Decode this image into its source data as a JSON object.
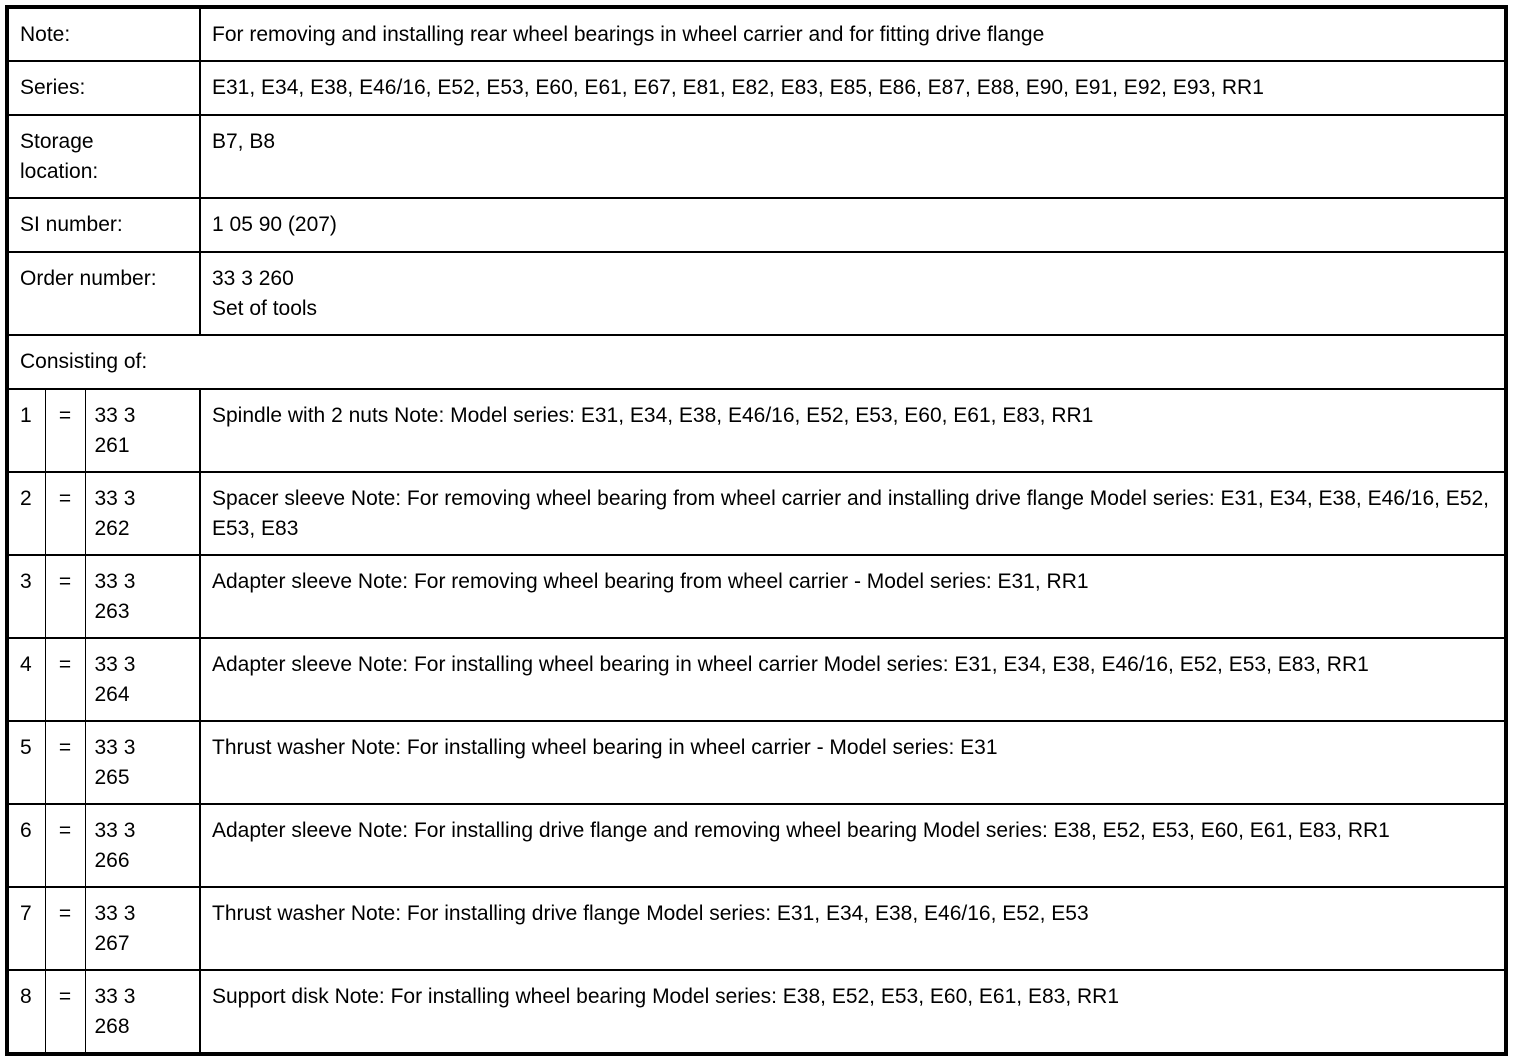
{
  "header_rows": [
    {
      "label": "Note:",
      "value": [
        "For removing and installing rear wheel bearings in wheel carrier and for fitting drive flange"
      ]
    },
    {
      "label": "Series:",
      "value": [
        "E31, E34, E38, E46/16, E52, E53, E60, E61, E67, E81, E82, E83, E85, E86, E87, E88, E90, E91, E92, E93, RR1"
      ]
    },
    {
      "label": "Storage location:",
      "value": [
        "B7, B8"
      ]
    },
    {
      "label": "SI number:",
      "value": [
        "1 05 90 (207)"
      ]
    },
    {
      "label": "Order number:",
      "value": [
        "33 3 260",
        "Set of tools"
      ]
    }
  ],
  "consisting_of_label": "Consisting of:",
  "items": [
    {
      "index": "1",
      "eq": "=",
      "part": [
        "33 3",
        "261"
      ],
      "description": "Spindle with 2 nuts Note: Model series: E31, E34, E38, E46/16, E52, E53, E60, E61, E83, RR1"
    },
    {
      "index": "2",
      "eq": "=",
      "part": [
        "33 3",
        "262"
      ],
      "description": "Spacer sleeve Note: For removing wheel bearing from wheel carrier and installing drive flange Model series: E31, E34, E38, E46/16, E52, E53, E83"
    },
    {
      "index": "3",
      "eq": "=",
      "part": [
        "33 3",
        "263"
      ],
      "description": "Adapter sleeve Note: For removing wheel bearing from wheel carrier - Model series: E31, RR1"
    },
    {
      "index": "4",
      "eq": "=",
      "part": [
        "33 3",
        "264"
      ],
      "description": "Adapter sleeve Note: For installing wheel bearing in wheel carrier Model series: E31, E34, E38, E46/16, E52, E53, E83, RR1"
    },
    {
      "index": "5",
      "eq": "=",
      "part": [
        "33 3",
        "265"
      ],
      "description": "Thrust washer Note: For installing wheel bearing in wheel carrier - Model series: E31"
    },
    {
      "index": "6",
      "eq": "=",
      "part": [
        "33 3",
        "266"
      ],
      "description": "Adapter sleeve Note: For installing drive flange and removing wheel bearing Model series: E38, E52, E53, E60, E61, E83, RR1"
    },
    {
      "index": "7",
      "eq": "=",
      "part": [
        "33 3",
        "267"
      ],
      "description": "Thrust washer Note: For installing drive flange Model series: E31, E34, E38, E46/16, E52, E53"
    },
    {
      "index": "8",
      "eq": "=",
      "part": [
        "33 3",
        "268"
      ],
      "description": "Support disk Note: For installing wheel bearing Model series: E38, E52, E53, E60, E61, E83, RR1"
    }
  ]
}
